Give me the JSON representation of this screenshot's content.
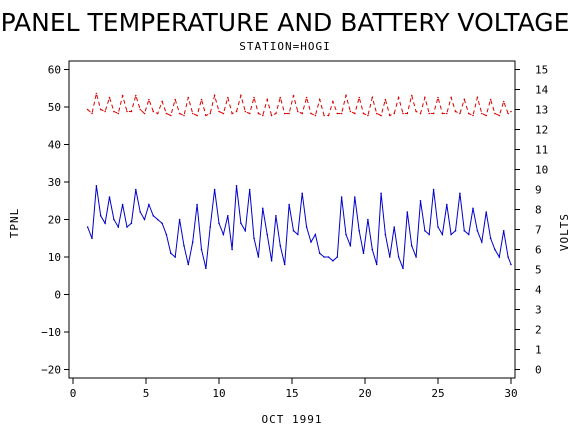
{
  "chart_data": {
    "type": "line",
    "title": "PANEL TEMPERATURE AND BATTERY VOLTAGE",
    "subtitle": "STATION=HOGI",
    "xlabel": "OCT 1991",
    "ylabel_left": "TPNL",
    "ylabel_right": "VOLTS",
    "xlim": [
      0,
      30
    ],
    "ylim_left": [
      -20,
      60
    ],
    "ylim_right": [
      0,
      15
    ],
    "x_ticks": [
      0,
      5,
      10,
      15,
      20,
      25,
      30
    ],
    "y_ticks_left": [
      -20,
      -10,
      0,
      10,
      20,
      30,
      40,
      50,
      60
    ],
    "y_ticks_right": [
      0,
      1,
      2,
      3,
      4,
      5,
      6,
      7,
      8,
      9,
      10,
      11,
      12,
      13,
      14,
      15
    ],
    "grid": false,
    "series": [
      {
        "axis": "left",
        "color": "#0000cc",
        "dash": "solid",
        "x": [
          1.0,
          1.3,
          1.6,
          1.9,
          2.2,
          2.5,
          2.8,
          3.1,
          3.4,
          3.7,
          4.0,
          4.3,
          4.6,
          4.9,
          5.2,
          5.5,
          5.8,
          6.1,
          6.4,
          6.7,
          7.0,
          7.3,
          7.6,
          7.9,
          8.2,
          8.5,
          8.8,
          9.1,
          9.4,
          9.7,
          10.0,
          10.3,
          10.6,
          10.9,
          11.2,
          11.5,
          11.8,
          12.1,
          12.4,
          12.7,
          13.0,
          13.3,
          13.6,
          13.9,
          14.2,
          14.5,
          14.8,
          15.1,
          15.4,
          15.7,
          16.0,
          16.3,
          16.6,
          16.9,
          17.2,
          17.5,
          17.8,
          18.1,
          18.4,
          18.7,
          19.0,
          19.3,
          19.6,
          19.9,
          20.2,
          20.5,
          20.8,
          21.1,
          21.4,
          21.7,
          22.0,
          22.3,
          22.6,
          22.9,
          23.2,
          23.5,
          23.8,
          24.1,
          24.4,
          24.7,
          25.0,
          25.3,
          25.6,
          25.9,
          26.2,
          26.5,
          26.8,
          27.1,
          27.4,
          27.7,
          28.0,
          28.3,
          28.6,
          28.9,
          29.2,
          29.5,
          29.8,
          30.0
        ],
        "values": [
          18,
          15,
          29,
          21,
          19,
          26,
          20,
          18,
          24,
          18,
          19,
          28,
          22,
          20,
          24,
          21,
          20,
          19,
          16,
          11,
          10,
          20,
          13,
          8,
          14,
          24,
          12,
          7,
          18,
          28,
          19,
          16,
          21,
          12,
          29,
          19,
          17,
          28,
          15,
          10,
          23,
          16,
          9,
          21,
          13,
          8,
          24,
          17,
          16,
          27,
          18,
          14,
          16,
          11,
          10,
          10,
          9,
          10,
          26,
          16,
          13,
          26,
          17,
          11,
          20,
          12,
          8,
          27,
          16,
          10,
          18,
          10,
          7,
          22,
          13,
          10,
          25,
          17,
          16,
          28,
          18,
          16,
          24,
          16,
          17,
          27,
          17,
          16,
          23,
          17,
          14,
          22,
          15,
          12,
          10,
          17,
          10,
          8
        ]
      },
      {
        "axis": "right",
        "color": "#dd0000",
        "dash": "dashed",
        "x": [
          1.0,
          1.3,
          1.6,
          1.9,
          2.2,
          2.5,
          2.8,
          3.1,
          3.4,
          3.7,
          4.0,
          4.3,
          4.6,
          4.9,
          5.2,
          5.5,
          5.8,
          6.1,
          6.4,
          6.7,
          7.0,
          7.3,
          7.6,
          7.9,
          8.2,
          8.5,
          8.8,
          9.1,
          9.4,
          9.7,
          10.0,
          10.3,
          10.6,
          10.9,
          11.2,
          11.5,
          11.8,
          12.1,
          12.4,
          12.7,
          13.0,
          13.3,
          13.6,
          13.9,
          14.2,
          14.5,
          14.8,
          15.1,
          15.4,
          15.7,
          16.0,
          16.3,
          16.6,
          16.9,
          17.2,
          17.5,
          17.8,
          18.1,
          18.4,
          18.7,
          19.0,
          19.3,
          19.6,
          19.9,
          20.2,
          20.5,
          20.8,
          21.1,
          21.4,
          21.7,
          22.0,
          22.3,
          22.6,
          22.9,
          23.2,
          23.5,
          23.8,
          24.1,
          24.4,
          24.7,
          25.0,
          25.3,
          25.6,
          25.9,
          26.2,
          26.5,
          26.8,
          27.1,
          27.4,
          27.7,
          28.0,
          28.3,
          28.6,
          28.9,
          29.2,
          29.5,
          29.8,
          30.0
        ],
        "values": [
          13.0,
          12.8,
          13.8,
          13.0,
          12.9,
          13.6,
          12.9,
          12.8,
          13.7,
          12.9,
          12.9,
          13.7,
          13.0,
          12.8,
          13.5,
          12.9,
          12.8,
          13.4,
          12.8,
          12.7,
          13.5,
          12.8,
          12.7,
          13.6,
          12.8,
          12.7,
          13.5,
          12.7,
          12.8,
          13.7,
          12.9,
          12.8,
          13.6,
          12.8,
          12.9,
          13.7,
          12.9,
          12.8,
          13.6,
          12.8,
          12.7,
          13.5,
          12.7,
          12.8,
          13.6,
          12.8,
          12.8,
          13.7,
          12.9,
          12.8,
          13.6,
          12.8,
          12.7,
          13.5,
          12.7,
          12.7,
          13.4,
          12.8,
          12.8,
          13.7,
          12.9,
          12.8,
          13.6,
          12.8,
          12.7,
          13.6,
          12.8,
          12.7,
          13.5,
          12.7,
          12.8,
          13.6,
          12.8,
          12.8,
          13.7,
          12.9,
          12.8,
          13.6,
          12.8,
          12.8,
          13.6,
          12.8,
          12.8,
          13.6,
          12.9,
          12.8,
          13.5,
          12.8,
          12.7,
          13.6,
          12.8,
          12.7,
          13.5,
          12.8,
          12.7,
          13.4,
          12.8,
          12.9
        ]
      }
    ]
  }
}
